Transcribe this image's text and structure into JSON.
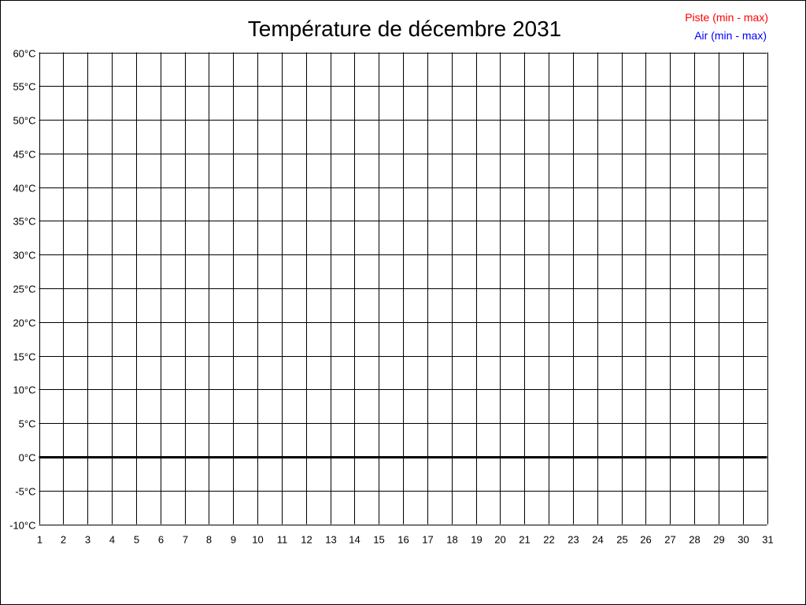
{
  "chart_data": {
    "type": "line",
    "title": "Température de décembre 2031",
    "xlabel": "",
    "ylabel": "",
    "x_ticks": [
      1,
      2,
      3,
      4,
      5,
      6,
      7,
      8,
      9,
      10,
      11,
      12,
      13,
      14,
      15,
      16,
      17,
      18,
      19,
      20,
      21,
      22,
      23,
      24,
      25,
      26,
      27,
      28,
      29,
      30,
      31
    ],
    "y_ticks": [
      "60°C",
      "55°C",
      "50°C",
      "45°C",
      "40°C",
      "35°C",
      "30°C",
      "25°C",
      "20°C",
      "15°C",
      "10°C",
      "5°C",
      "0°C",
      "-5°C",
      "-10°C"
    ],
    "xlim": [
      1,
      31
    ],
    "ylim": [
      -10,
      60
    ],
    "y_step": 5,
    "grid": true,
    "legend_position": "top-right",
    "legend": [
      {
        "name": "Piste (min - max)",
        "color": "#ff0000"
      },
      {
        "name": "Air (min - max)",
        "color": "#0000ff"
      }
    ],
    "series": []
  }
}
